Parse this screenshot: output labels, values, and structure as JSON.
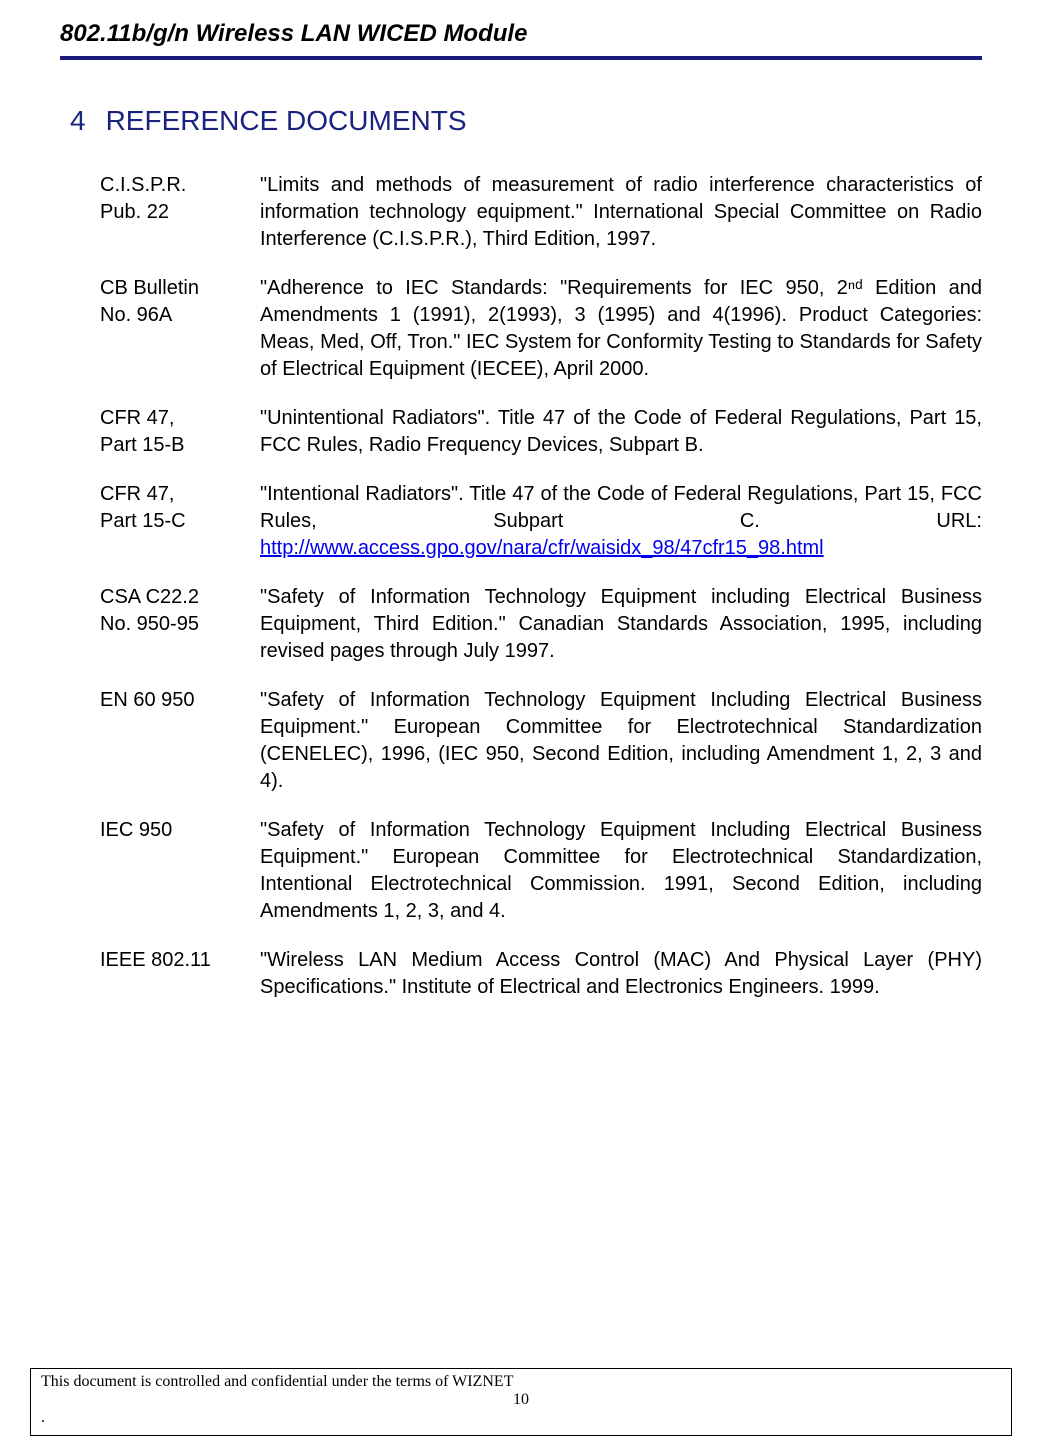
{
  "header": {
    "title": "802.11b/g/n Wireless LAN WICED Module"
  },
  "section": {
    "number": "4",
    "title": "REFERENCE DOCUMENTS"
  },
  "references": [
    {
      "label_line1": "C.I.S.P.R.",
      "label_line2": "Pub. 22",
      "desc": "\"Limits and methods of measurement of radio interference characteristics of information technology equipment.\" International Special Committee on Radio Interference (C.I.S.P.R.), Third Edition, 1997."
    },
    {
      "label_line1": "CB Bulletin",
      "label_line2": "No. 96A",
      "desc": "\"Adherence to IEC Standards: \"Requirements for IEC 950, 2ⁿᵈ Edition and Amendments 1 (1991), 2(1993), 3 (1995) and 4(1996).  Product Categories: Meas, Med, Off, Tron.\"  IEC System for Conformity Testing to Standards for Safety of Electrical Equipment (IECEE), April 2000."
    },
    {
      "label_line1": "CFR 47,",
      "label_line2": "Part 15-B",
      "desc": "\"Unintentional Radiators\".  Title 47 of the Code of Federal Regulations, Part 15, FCC Rules, Radio Frequency Devices, Subpart B."
    },
    {
      "label_line1": "CFR 47,",
      "label_line2": "Part 15-C",
      "desc_prefix": "\"Intentional Radiators\".  Title 47 of the Code of Federal Regulations, Part 15, FCC Rules, Subpart C.  URL: ",
      "link": "http://www.access.gpo.gov/nara/cfr/waisidx_98/47cfr15_98.html"
    },
    {
      "label_line1": "CSA C22.2",
      "label_line2": "No. 950-95",
      "desc": "\"Safety of Information Technology Equipment including Electrical Business Equipment, Third Edition.\" Canadian Standards Association, 1995, including revised pages through July 1997."
    },
    {
      "label_line1": "EN 60 950",
      "label_line2": "",
      "desc": "\"Safety of Information Technology Equipment Including Electrical Business Equipment.\" European Committee for Electrotechnical Standardization (CENELEC), 1996, (IEC 950, Second Edition, including Amendment 1, 2, 3 and 4)."
    },
    {
      "label_line1": "IEC 950",
      "label_line2": "",
      "desc": "\"Safety of Information Technology Equipment Including Electrical Business Equipment.\" European Committee for Electrotechnical Standardization, Intentional Electrotechnical Commission. 1991, Second Edition, including Amendments 1, 2, 3, and 4."
    },
    {
      "label_line1": "IEEE 802.11",
      "label_line2": "",
      "desc": "\"Wireless LAN Medium Access Control (MAC) And Physical Layer (PHY) Specifications.\" Institute of Electrical and Electronics Engineers. 1999."
    }
  ],
  "footer": {
    "text": "This document is controlled and confidential under the terms of WIZNET",
    "page": "10",
    "dot": "."
  },
  "colors": {
    "header_rule": "#1a1a7a",
    "heading_text": "#1a237e",
    "body_text": "#000000",
    "link": "#0000ee",
    "background": "#ffffff"
  },
  "typography": {
    "header_title_size": 24,
    "section_heading_size": 28,
    "body_size": 20,
    "footer_size": 16
  }
}
